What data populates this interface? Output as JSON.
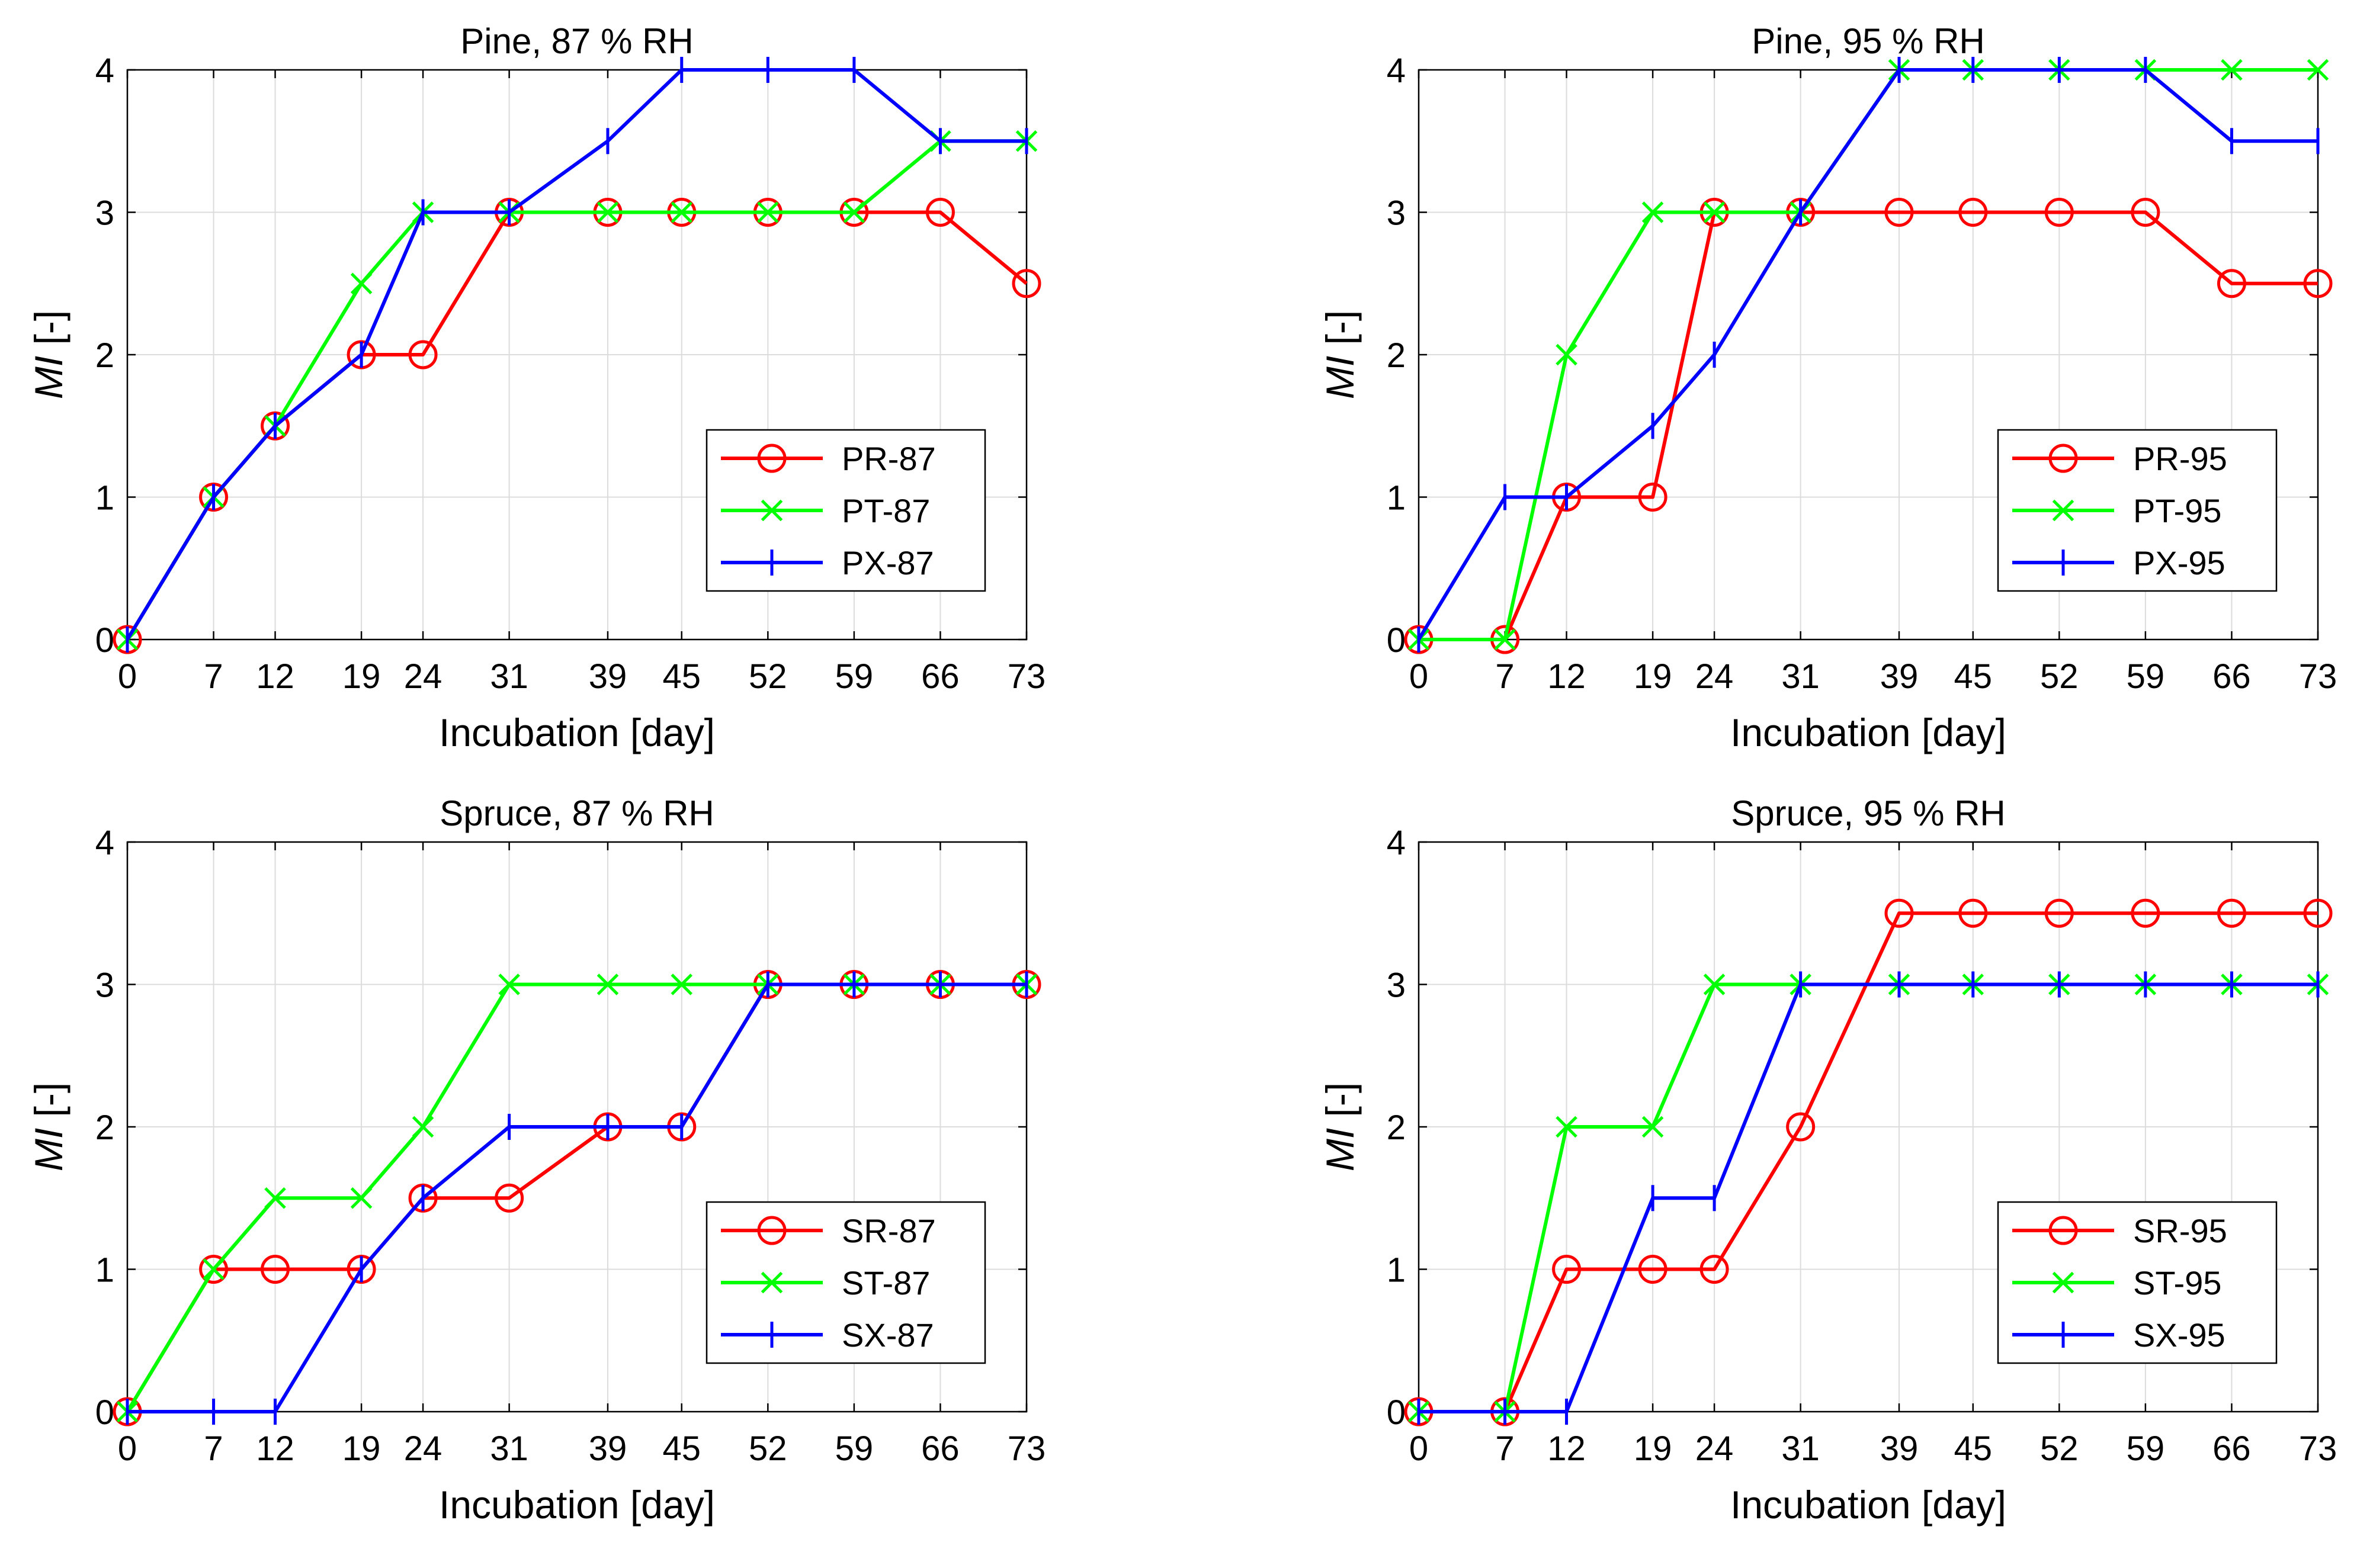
{
  "chart_data": [
    {
      "type": "line",
      "title": "Pine, 87 % RH",
      "xlabel": "Incubation [day]",
      "ylabel_italic": "MI",
      "ylabel_unit": " [-]",
      "x": [
        0,
        7,
        12,
        19,
        24,
        31,
        39,
        45,
        52,
        59,
        66,
        73
      ],
      "xlim": [
        0,
        73
      ],
      "ylim": [
        0,
        4
      ],
      "yticks": [
        0,
        1,
        2,
        3,
        4
      ],
      "grid": true,
      "legend_position": "bottom-right",
      "series": [
        {
          "name": "PR-87",
          "color": "#ff0000",
          "marker": "circle",
          "values": [
            0,
            1,
            1.5,
            2,
            2,
            3,
            3,
            3,
            3,
            3,
            3,
            2.5
          ]
        },
        {
          "name": "PT-87",
          "color": "#00ff00",
          "marker": "x",
          "values": [
            0,
            1,
            1.5,
            2.5,
            3,
            3,
            3,
            3,
            3,
            3,
            3.5,
            3.5
          ]
        },
        {
          "name": "PX-87",
          "color": "#0000ff",
          "marker": "plus-vertical",
          "values": [
            0,
            1,
            1.5,
            2,
            3,
            3,
            3.5,
            4,
            4,
            4,
            3.5,
            3.5
          ]
        }
      ]
    },
    {
      "type": "line",
      "title": "Pine, 95 % RH",
      "xlabel": "Incubation [day]",
      "ylabel_italic": "MI",
      "ylabel_unit": " [-]",
      "x": [
        0,
        7,
        12,
        19,
        24,
        31,
        39,
        45,
        52,
        59,
        66,
        73
      ],
      "xlim": [
        0,
        73
      ],
      "ylim": [
        0,
        4
      ],
      "yticks": [
        0,
        1,
        2,
        3,
        4
      ],
      "grid": true,
      "legend_position": "bottom-right",
      "series": [
        {
          "name": "PR-95",
          "color": "#ff0000",
          "marker": "circle",
          "values": [
            0,
            0,
            1,
            1,
            3,
            3,
            3,
            3,
            3,
            3,
            2.5,
            2.5
          ]
        },
        {
          "name": "PT-95",
          "color": "#00ff00",
          "marker": "x",
          "values": [
            0,
            0,
            2,
            3,
            3,
            3,
            4,
            4,
            4,
            4,
            4,
            4
          ]
        },
        {
          "name": "PX-95",
          "color": "#0000ff",
          "marker": "plus-vertical",
          "values": [
            0,
            1,
            1,
            1.5,
            2,
            3,
            4,
            4,
            4,
            4,
            3.5,
            3.5
          ]
        }
      ]
    },
    {
      "type": "line",
      "title": "Spruce, 87 % RH",
      "xlabel": "Incubation [day]",
      "ylabel_italic": "MI",
      "ylabel_unit": " [-]",
      "x": [
        0,
        7,
        12,
        19,
        24,
        31,
        39,
        45,
        52,
        59,
        66,
        73
      ],
      "xlim": [
        0,
        73
      ],
      "ylim": [
        0,
        4
      ],
      "yticks": [
        0,
        1,
        2,
        3,
        4
      ],
      "grid": true,
      "legend_position": "bottom-right",
      "series": [
        {
          "name": "SR-87",
          "color": "#ff0000",
          "marker": "circle",
          "values": [
            0,
            1,
            1,
            1,
            1.5,
            1.5,
            2,
            2,
            3,
            3,
            3,
            3
          ]
        },
        {
          "name": "ST-87",
          "color": "#00ff00",
          "marker": "x",
          "values": [
            0,
            1,
            1.5,
            1.5,
            2,
            3,
            3,
            3,
            3,
            3,
            3,
            3
          ]
        },
        {
          "name": "SX-87",
          "color": "#0000ff",
          "marker": "plus-vertical",
          "values": [
            0,
            0,
            0,
            1,
            1.5,
            2,
            2,
            2,
            3,
            3,
            3,
            3
          ]
        }
      ]
    },
    {
      "type": "line",
      "title": "Spruce, 95 % RH",
      "xlabel": "Incubation [day]",
      "ylabel_italic": "MI",
      "ylabel_unit": " [-]",
      "x": [
        0,
        7,
        12,
        19,
        24,
        31,
        39,
        45,
        52,
        59,
        66,
        73
      ],
      "xlim": [
        0,
        73
      ],
      "ylim": [
        0,
        4
      ],
      "yticks": [
        0,
        1,
        2,
        3,
        4
      ],
      "grid": true,
      "legend_position": "bottom-right",
      "series": [
        {
          "name": "SR-95",
          "color": "#ff0000",
          "marker": "circle",
          "values": [
            0,
            0,
            1,
            1,
            1,
            2,
            3.5,
            3.5,
            3.5,
            3.5,
            3.5,
            3.5
          ]
        },
        {
          "name": "ST-95",
          "color": "#00ff00",
          "marker": "x",
          "values": [
            0,
            0,
            2,
            2,
            3,
            3,
            3,
            3,
            3,
            3,
            3,
            3
          ]
        },
        {
          "name": "SX-95",
          "color": "#0000ff",
          "marker": "plus-vertical",
          "values": [
            0,
            0,
            0,
            1.5,
            1.5,
            3,
            3,
            3,
            3,
            3,
            3,
            3
          ]
        }
      ]
    }
  ]
}
